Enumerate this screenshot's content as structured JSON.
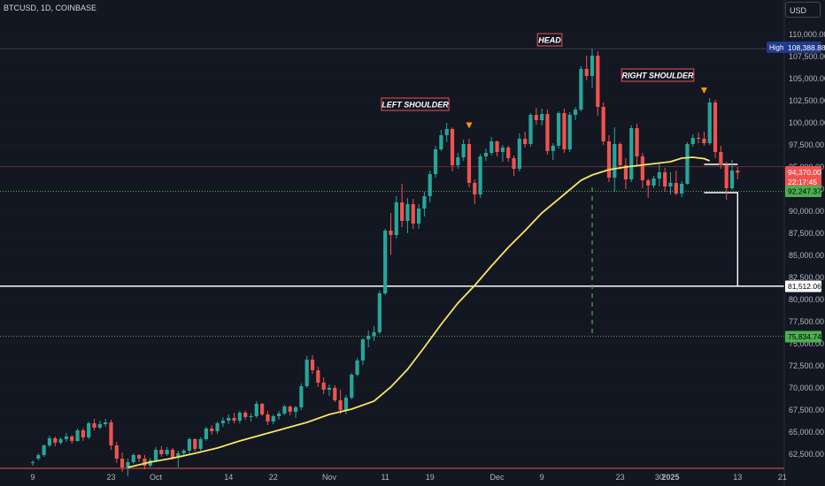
{
  "header": {
    "symbol": "BTCUSD, 1D, COINBASE",
    "currency": "USD"
  },
  "chart_data": {
    "type": "candlestick",
    "y_ticks": [
      "62,500.00",
      "65,000.00",
      "67,500.00",
      "70,000.00",
      "72,500.00",
      "75,000.00",
      "77,500.00",
      "80,000.00",
      "82,500.00",
      "85,000.00",
      "87,500.00",
      "90,000.00",
      "92,500.00",
      "95,000.00",
      "97,500.00",
      "100,000.00",
      "102,500.00",
      "105,000.00",
      "107,500.00",
      "110,000.00"
    ],
    "ylim": [
      61000,
      111500
    ],
    "x_ticks": [
      {
        "label": "9",
        "day": 0
      },
      {
        "label": "23",
        "day": 14
      },
      {
        "label": "Oct",
        "day": 22
      },
      {
        "label": "14",
        "day": 35
      },
      {
        "label": "22",
        "day": 43
      },
      {
        "label": "Nov",
        "day": 53
      },
      {
        "label": "11",
        "day": 63
      },
      {
        "label": "19",
        "day": 71
      },
      {
        "label": "Dec",
        "day": 83
      },
      {
        "label": "9",
        "day": 91
      },
      {
        "label": "23",
        "day": 105
      },
      {
        "label": "30",
        "day": 112
      },
      {
        "label": "2025",
        "day": 114
      },
      {
        "label": "13",
        "day": 126
      },
      {
        "label": "21",
        "day": 134
      }
    ],
    "candles": [
      [
        61500,
        61800,
        61200,
        61600
      ],
      [
        62000,
        62600,
        61800,
        62400
      ],
      [
        62400,
        63600,
        62200,
        63500
      ],
      [
        63500,
        64600,
        63300,
        64300
      ],
      [
        64300,
        64500,
        63400,
        63800
      ],
      [
        63800,
        64400,
        63600,
        64200
      ],
      [
        64200,
        64900,
        63900,
        64500
      ],
      [
        64500,
        64700,
        63700,
        64000
      ],
      [
        64000,
        65400,
        63900,
        65200
      ],
      [
        65200,
        65500,
        64000,
        64400
      ],
      [
        64400,
        66200,
        64200,
        66000
      ],
      [
        66000,
        66500,
        65200,
        65500
      ],
      [
        65500,
        66300,
        65300,
        65900
      ],
      [
        65900,
        66500,
        65600,
        66100
      ],
      [
        66100,
        66400,
        63000,
        63500
      ],
      [
        63500,
        63900,
        61500,
        62000
      ],
      [
        62000,
        62700,
        60500,
        61000
      ],
      [
        61000,
        62000,
        60000,
        61600
      ],
      [
        61600,
        62600,
        61400,
        62400
      ],
      [
        62400,
        62500,
        61600,
        62000
      ],
      [
        62000,
        62400,
        60800,
        61200
      ],
      [
        61200,
        62100,
        61000,
        61800
      ],
      [
        61800,
        63300,
        61600,
        63000
      ],
      [
        63000,
        63400,
        62200,
        62500
      ],
      [
        62500,
        63300,
        62300,
        63000
      ],
      [
        63000,
        63200,
        61900,
        62100
      ],
      [
        62100,
        62900,
        61000,
        62600
      ],
      [
        62600,
        63100,
        62200,
        62900
      ],
      [
        62900,
        64400,
        62600,
        64200
      ],
      [
        64200,
        64300,
        62800,
        63100
      ],
      [
        63100,
        64400,
        62900,
        64200
      ],
      [
        64200,
        65600,
        64000,
        65400
      ],
      [
        65400,
        65800,
        64700,
        65100
      ],
      [
        65100,
        66200,
        64800,
        66000
      ],
      [
        66000,
        66700,
        65600,
        66300
      ],
      [
        66300,
        67000,
        65900,
        66600
      ],
      [
        66600,
        67200,
        66000,
        66300
      ],
      [
        66300,
        67400,
        66000,
        67200
      ],
      [
        67200,
        67400,
        66400,
        66700
      ],
      [
        66700,
        67100,
        66200,
        66800
      ],
      [
        66800,
        68500,
        66600,
        68200
      ],
      [
        68200,
        68300,
        66800,
        67000
      ],
      [
        67000,
        67400,
        65800,
        66200
      ],
      [
        66200,
        67000,
        65900,
        66800
      ],
      [
        66800,
        67400,
        66400,
        67100
      ],
      [
        67100,
        68100,
        66900,
        67900
      ],
      [
        67900,
        68000,
        66900,
        67300
      ],
      [
        67300,
        68000,
        66600,
        67800
      ],
      [
        67800,
        70500,
        67500,
        70200
      ],
      [
        70200,
        73600,
        70000,
        73200
      ],
      [
        73200,
        73700,
        71600,
        72000
      ],
      [
        72000,
        72400,
        70100,
        70600
      ],
      [
        70600,
        71200,
        69300,
        69800
      ],
      [
        69800,
        70400,
        69100,
        70000
      ],
      [
        70000,
        70300,
        68400,
        68600
      ],
      [
        68600,
        69800,
        67000,
        67500
      ],
      [
        67500,
        69200,
        67000,
        68900
      ],
      [
        68900,
        71700,
        68700,
        71500
      ],
      [
        71500,
        73400,
        71300,
        73100
      ],
      [
        73100,
        75600,
        72600,
        75500
      ],
      [
        75500,
        76500,
        74600,
        75900
      ],
      [
        75900,
        77000,
        75300,
        76300
      ],
      [
        76300,
        81000,
        76100,
        80700
      ],
      [
        80700,
        88000,
        80500,
        87800
      ],
      [
        87800,
        89800,
        85100,
        87300
      ],
      [
        87300,
        91700,
        86900,
        91000
      ],
      [
        91000,
        93100,
        88200,
        88900
      ],
      [
        88900,
        91500,
        87500,
        90800
      ],
      [
        90800,
        91400,
        88000,
        88600
      ],
      [
        88600,
        90800,
        88000,
        90300
      ],
      [
        90300,
        92200,
        89400,
        91700
      ],
      [
        91700,
        94600,
        91000,
        94200
      ],
      [
        94200,
        97400,
        93800,
        97000
      ],
      [
        97000,
        99200,
        96800,
        98600
      ],
      [
        98600,
        100000,
        97800,
        99300
      ],
      [
        99300,
        99500,
        94500,
        95200
      ],
      [
        95200,
        96600,
        94800,
        96100
      ],
      [
        96100,
        98100,
        95700,
        97600
      ],
      [
        97600,
        98200,
        92700,
        93200
      ],
      [
        93200,
        93600,
        90800,
        91900
      ],
      [
        91900,
        96500,
        91500,
        96200
      ],
      [
        96200,
        97100,
        95700,
        96600
      ],
      [
        96600,
        98400,
        96300,
        97900
      ],
      [
        97900,
        98000,
        96200,
        96700
      ],
      [
        96700,
        97500,
        95600,
        97200
      ],
      [
        97200,
        97400,
        95600,
        96000
      ],
      [
        96000,
        96300,
        94000,
        94800
      ],
      [
        94800,
        98800,
        94500,
        98200
      ],
      [
        98200,
        99000,
        97200,
        97600
      ],
      [
        97600,
        101100,
        97300,
        100900
      ],
      [
        100900,
        101700,
        99800,
        100300
      ],
      [
        100300,
        101600,
        99700,
        101000
      ],
      [
        101000,
        101500,
        96400,
        96800
      ],
      [
        96800,
        97700,
        95800,
        97400
      ],
      [
        97400,
        101300,
        97100,
        101100
      ],
      [
        101100,
        101600,
        96600,
        97000
      ],
      [
        97000,
        101200,
        96700,
        100900
      ],
      [
        100900,
        101800,
        100300,
        101500
      ],
      [
        101500,
        106400,
        101300,
        106100
      ],
      [
        106100,
        107600,
        104800,
        105300
      ],
      [
        105300,
        108389,
        103900,
        107600
      ],
      [
        107600,
        108100,
        100800,
        101800
      ],
      [
        101800,
        102300,
        97500,
        97900
      ],
      [
        97900,
        98600,
        93300,
        93800
      ],
      [
        93800,
        99500,
        92200,
        97600
      ],
      [
        97600,
        97800,
        94700,
        95200
      ],
      [
        95200,
        96000,
        92500,
        93600
      ],
      [
        93600,
        99700,
        93300,
        99400
      ],
      [
        99400,
        99900,
        95100,
        96200
      ],
      [
        96200,
        96600,
        92600,
        93500
      ],
      [
        93500,
        93700,
        91500,
        92900
      ],
      [
        92900,
        94000,
        92600,
        93700
      ],
      [
        93700,
        95400,
        92800,
        94400
      ],
      [
        94400,
        94900,
        92200,
        92800
      ],
      [
        92800,
        94400,
        91900,
        93200
      ],
      [
        93200,
        94600,
        91800,
        92000
      ],
      [
        92000,
        93400,
        91600,
        93100
      ],
      [
        93100,
        97800,
        93000,
        97600
      ],
      [
        97600,
        98700,
        97300,
        98300
      ],
      [
        98300,
        98900,
        97700,
        98200
      ],
      [
        98200,
        99000,
        97400,
        97700
      ],
      [
        97700,
        102800,
        97500,
        102300
      ],
      [
        102300,
        102600,
        96000,
        96700
      ],
      [
        96700,
        97400,
        94800,
        95200
      ],
      [
        95200,
        95600,
        91300,
        92600
      ],
      [
        92600,
        95800,
        92400,
        94600
      ],
      [
        94600,
        95000,
        93600,
        94370
      ]
    ],
    "ma_points": [
      [
        17,
        61000
      ],
      [
        21,
        61600
      ],
      [
        25,
        62050
      ],
      [
        29,
        62600
      ],
      [
        33,
        63200
      ],
      [
        37,
        64000
      ],
      [
        41,
        64700
      ],
      [
        45,
        65400
      ],
      [
        49,
        66100
      ],
      [
        53,
        67000
      ],
      [
        57,
        67600
      ],
      [
        61,
        68500
      ],
      [
        64,
        70100
      ],
      [
        67,
        72100
      ],
      [
        70,
        74600
      ],
      [
        73,
        77200
      ],
      [
        76,
        79600
      ],
      [
        79,
        81600
      ],
      [
        82,
        83800
      ],
      [
        85,
        85900
      ],
      [
        88,
        87800
      ],
      [
        91,
        89800
      ],
      [
        95,
        91900
      ],
      [
        98,
        93500
      ],
      [
        100,
        94100
      ],
      [
        103,
        94700
      ],
      [
        106,
        95000
      ],
      [
        110,
        95300
      ],
      [
        114,
        95600
      ],
      [
        116,
        96000
      ],
      [
        118,
        96100
      ],
      [
        120,
        95950
      ],
      [
        121,
        95700
      ]
    ],
    "series": [
      {
        "name": "Moving average",
        "color": "#f5e663"
      }
    ],
    "pattern_labels": {
      "left": "LEFT SHOULDER",
      "head": "HEAD",
      "right": "RIGHT SHOULDER"
    },
    "markers": [
      {
        "day": 78,
        "price": 99650
      },
      {
        "day": 120,
        "price": 103600
      }
    ],
    "levels": {
      "support": 92247.37,
      "target": 81512.06,
      "lower": 75834.74,
      "current_line": 95050
    },
    "price_tags": {
      "high_label": "High",
      "high_value": "108,388.88",
      "current_value": "94,370.00",
      "countdown": "22:17:45",
      "support": "92,247.37",
      "target": "81,512.06",
      "lower": "75,834.74"
    },
    "colors": {
      "background": "#131722",
      "up": "#26a69a",
      "down": "#ef5350",
      "ma": "#f5e663",
      "grid": "#2a2e39",
      "support": "#4caf50",
      "target": "#ffffff",
      "current": "#ef5350",
      "marker": "#ff9800",
      "high_tag": "#1e3a8a"
    }
  }
}
